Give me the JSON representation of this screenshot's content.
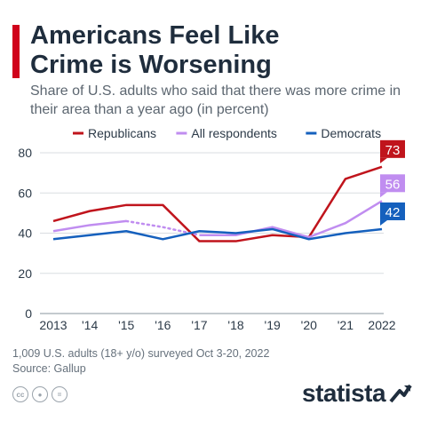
{
  "title_line1": "Americans Feel Like",
  "title_line2": "Crime is Worsening",
  "subtitle": "Share of U.S. adults who said that there was more crime in their area than a year ago (in percent)",
  "footnote": "1,009 U.S. adults (18+ y/o) surveyed Oct 3-20, 2022",
  "source": "Source: Gallup",
  "brand": "statista",
  "colors": {
    "accent": "#d0021b",
    "republicans": "#c0141c",
    "all": "#c08df0",
    "democrats": "#1560bd",
    "grid": "#d9dde1",
    "text": "#1f2d3d"
  },
  "icons": [
    "cc-icon",
    "person-icon",
    "equals-icon"
  ],
  "chart_data": {
    "type": "line",
    "x": [
      "2013",
      "'14",
      "'15",
      "'16",
      "'17",
      "'18",
      "'19",
      "'20",
      "'21",
      "2022"
    ],
    "ylim": [
      0,
      80
    ],
    "yticks": [
      0,
      20,
      40,
      60,
      80
    ],
    "grid": true,
    "legend_position": "top",
    "series": [
      {
        "name": "Republicans",
        "color": "#c0141c",
        "values": [
          46,
          51,
          54,
          54,
          36,
          36,
          39,
          38,
          67,
          73
        ],
        "end_label": "73"
      },
      {
        "name": "All respondents",
        "color": "#c08df0",
        "values": [
          41,
          44,
          46,
          43,
          39,
          39,
          43,
          38,
          45,
          56
        ],
        "end_label": "56",
        "dotted_between": [
          2,
          3
        ]
      },
      {
        "name": "Democrats",
        "color": "#1560bd",
        "values": [
          37,
          39,
          41,
          37,
          41,
          40,
          42,
          37,
          40,
          42
        ],
        "end_label": "42"
      }
    ]
  }
}
